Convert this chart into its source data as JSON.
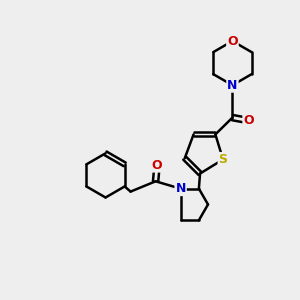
{
  "bg_color": "#eeeeee",
  "atom_colors": {
    "C": "#000000",
    "N": "#0000cc",
    "O": "#cc0000",
    "S": "#bbaa00"
  },
  "bond_color": "#000000",
  "bond_width": 1.8,
  "figsize": [
    3.0,
    3.0
  ],
  "dpi": 100,
  "xlim": [
    0.0,
    10.0
  ],
  "ylim": [
    1.5,
    11.0
  ]
}
